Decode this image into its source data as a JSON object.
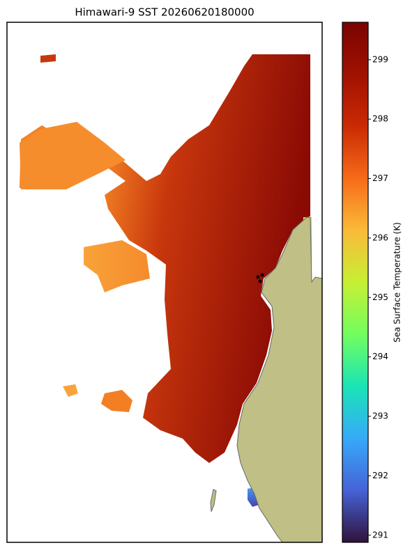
{
  "chart_data": {
    "type": "map",
    "title": "Himawari-9 SST 20260620180000",
    "colorbar_label": "Sea Surface Temperature (K)",
    "colormap": "turbo",
    "clim": [
      290.88,
      299.63
    ],
    "cticks": [
      291,
      292,
      293,
      294,
      295,
      296,
      297,
      298,
      299
    ]
  }
}
